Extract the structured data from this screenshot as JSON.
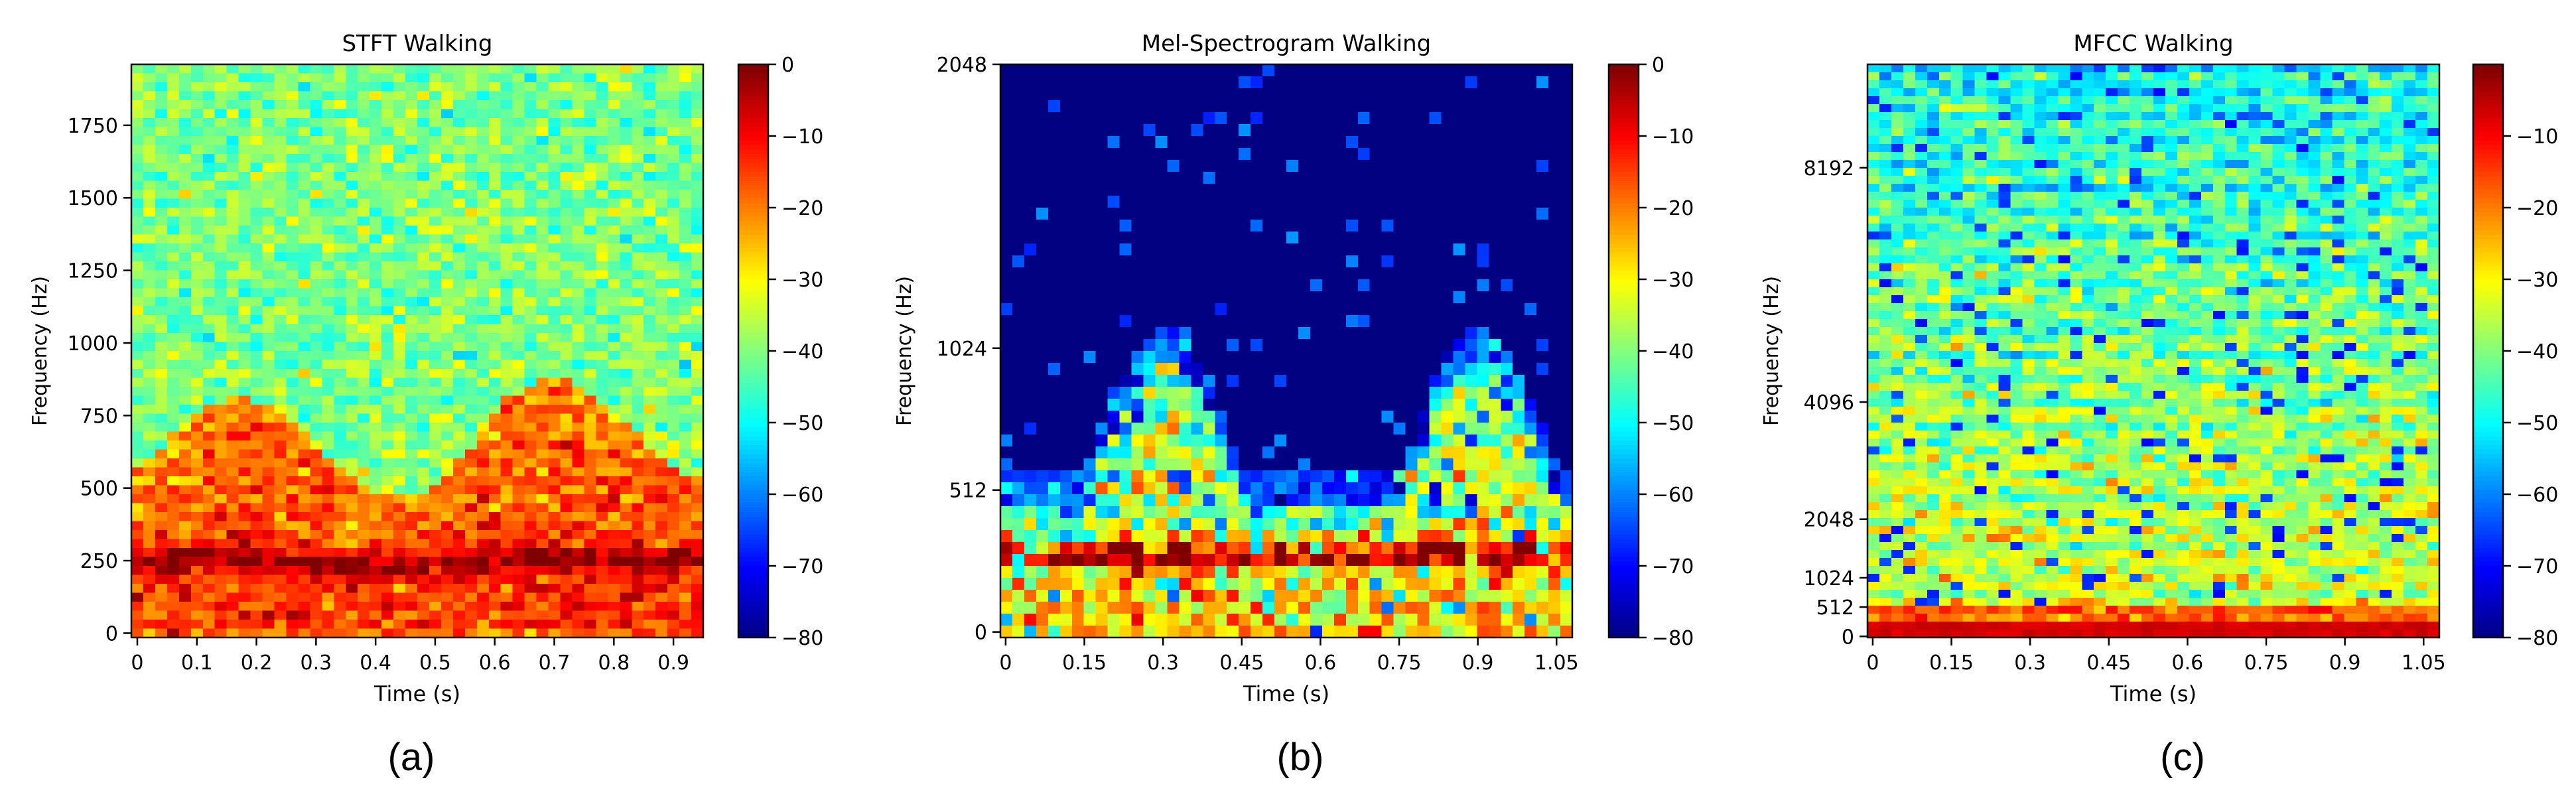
{
  "colors": {
    "axis": "#000000",
    "background": "#ffffff",
    "colormap": "jet"
  },
  "chart_data": [
    {
      "type": "heatmap",
      "id": "stft",
      "title": "STFT Walking",
      "xlabel": "Time (s)",
      "ylabel": "Frequency (Hz)",
      "xlim": [
        -0.01,
        0.95
      ],
      "ylim": [
        -15,
        1960
      ],
      "x_ticks": [
        0,
        0.1,
        0.2,
        0.3,
        0.4,
        0.5,
        0.6,
        0.7,
        0.8,
        0.9
      ],
      "x_tick_labels": [
        "0",
        "0.1",
        "0.2",
        "0.3",
        "0.4",
        "0.5",
        "0.6",
        "0.7",
        "0.8",
        "0.9"
      ],
      "y_ticks": [
        0,
        250,
        500,
        750,
        1000,
        1250,
        1500,
        1750
      ],
      "y_tick_labels": [
        "0",
        "250",
        "500",
        "750",
        "1000",
        "1250",
        "1500",
        "1750"
      ],
      "color_range": [
        -80,
        0
      ],
      "colorbar_ticks": [
        0,
        -10,
        -20,
        -30,
        -40,
        -50,
        -60,
        -70,
        -80
      ],
      "colorbar_labels": [
        "0",
        "−10",
        "−20",
        "−30",
        "−40",
        "−50",
        "−60",
        "−70",
        "−80"
      ],
      "grid": false,
      "pattern": "Warm energy band (about -20 to -5 dB) concentrated below ~800 Hz with a strong ridge near 250 Hz; green background around -40 dB above 1000 Hz",
      "grid_cols": 48,
      "grid_rows": 64,
      "caption": "(a)"
    },
    {
      "type": "heatmap",
      "id": "mel",
      "title": "Mel-Spectrogram Walking",
      "xlabel": "Time (s)",
      "ylabel": "Frequency (Hz)",
      "xlim": [
        -0.01,
        1.08
      ],
      "ylim": [
        -20,
        2048
      ],
      "x_ticks": [
        0,
        0.15,
        0.3,
        0.45,
        0.6,
        0.75,
        0.9,
        1.05
      ],
      "x_tick_labels": [
        "0",
        "0.15",
        "0.3",
        "0.45",
        "0.6",
        "0.75",
        "0.9",
        "1.05"
      ],
      "y_ticks": [
        0,
        512,
        1024,
        2048
      ],
      "y_tick_labels": [
        "0",
        "512",
        "1024",
        "2048"
      ],
      "color_range": [
        -80,
        0
      ],
      "colorbar_ticks": [
        0,
        -10,
        -20,
        -30,
        -40,
        -50,
        -60,
        -70,
        -80
      ],
      "colorbar_labels": [
        "0",
        "−10",
        "−20",
        "−30",
        "−40",
        "−50",
        "−60",
        "−70",
        "−80"
      ],
      "grid": false,
      "pattern": "Mostly -80 dB (dark blue) above ~900 Hz; two micro-Doppler lobes reaching ~850 Hz near t=0.4 s and t=0.9 s; red ridge near 250 Hz",
      "grid_cols": 48,
      "grid_rows": 48,
      "caption": "(b)"
    },
    {
      "type": "heatmap",
      "id": "mfcc",
      "title": "MFCC Walking",
      "xlabel": "Time (s)",
      "ylabel": "Frequency (Hz)",
      "xlim": [
        -0.01,
        1.08
      ],
      "ylim": [
        -20,
        10000
      ],
      "x_ticks": [
        0,
        0.15,
        0.3,
        0.45,
        0.6,
        0.75,
        0.9,
        1.05
      ],
      "x_tick_labels": [
        "0",
        "0.15",
        "0.3",
        "0.45",
        "0.6",
        "0.75",
        "0.9",
        "1.05"
      ],
      "y_ticks": [
        0,
        512,
        1024,
        2048,
        4096,
        8192
      ],
      "y_tick_labels": [
        "0",
        "512",
        "1024",
        "2048",
        "4096",
        "8192"
      ],
      "color_range": [
        -80,
        0
      ],
      "colorbar_ticks": [
        -10,
        -20,
        -30,
        -40,
        -50,
        -60,
        -70,
        -80
      ],
      "colorbar_labels": [
        "−10",
        "−20",
        "−30",
        "−40",
        "−50",
        "−60",
        "−70",
        "−80"
      ],
      "grid": false,
      "pattern": "Horizontal striations; bright red-orange bands at the lowest frequencies; mostly green/cyan (-35 to -50 dB) above with sparse dark-blue pixels",
      "grid_cols": 48,
      "grid_rows": 72,
      "caption": "(c)"
    }
  ]
}
